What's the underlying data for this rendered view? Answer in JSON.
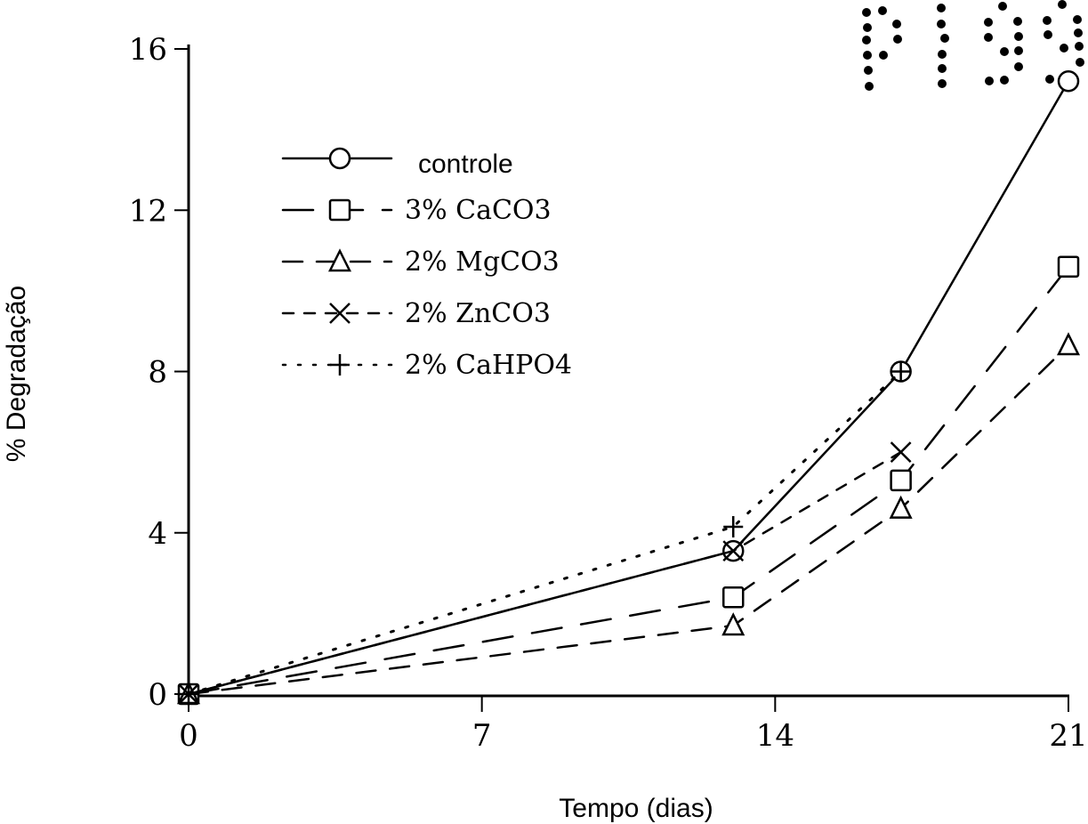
{
  "chart_data": {
    "type": "line",
    "xlabel": "Tempo (dias)",
    "ylabel": "% Degradação",
    "xlim": [
      0,
      21
    ],
    "ylim": [
      0,
      16
    ],
    "xticks": [
      "0",
      "7",
      "14",
      "21"
    ],
    "yticks": [
      "0",
      "4",
      "8",
      "12",
      "16"
    ],
    "grid": false,
    "legend_position": "upper-left",
    "stamp": "P199",
    "series": [
      {
        "name": "controle",
        "marker": "circle",
        "dash": "solid",
        "x": [
          0,
          13,
          17,
          21
        ],
        "y": [
          0,
          3.55,
          8.0,
          15.2
        ]
      },
      {
        "name": "3% CaCO3",
        "marker": "square",
        "dash": "long-dash",
        "x": [
          0,
          13,
          17,
          21
        ],
        "y": [
          0,
          2.4,
          5.3,
          10.6
        ]
      },
      {
        "name": "2% MgCO3",
        "marker": "triangle",
        "dash": "dash",
        "x": [
          0,
          13,
          17,
          21
        ],
        "y": [
          0,
          1.7,
          4.6,
          8.65
        ]
      },
      {
        "name": "2% ZnCO3",
        "marker": "x",
        "dash": "short-dash",
        "x": [
          0,
          13,
          17
        ],
        "y": [
          0,
          3.55,
          6.0
        ]
      },
      {
        "name": "2% CaHPO4",
        "marker": "plus",
        "dash": "dotted",
        "x": [
          0,
          13,
          17
        ],
        "y": [
          0,
          4.15,
          8.0
        ]
      }
    ]
  }
}
